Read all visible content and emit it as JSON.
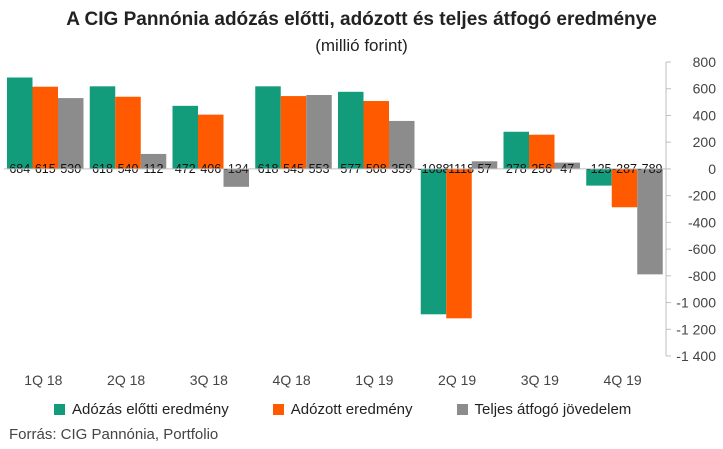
{
  "title": "A CIG Pannónia adózás előtti, adózott és teljes átfogó eredménye",
  "subtitle": "(millió forint)",
  "source": "Forrás: CIG Pannónia, Portfolio",
  "colors": {
    "series": [
      "#129c7c",
      "#ff5a00",
      "#8c8c8c"
    ],
    "axis": "#bfbfbf",
    "grid": "#d9d9d9"
  },
  "chart_data": {
    "type": "bar",
    "title": "A CIG Pannónia adózás előtti, adózott és teljes átfogó eredménye",
    "subtitle": "(millió forint)",
    "categories": [
      "1Q 18",
      "2Q 18",
      "3Q 18",
      "4Q 18",
      "1Q 19",
      "2Q 19",
      "3Q 19",
      "4Q 19"
    ],
    "series": [
      {
        "name": "Adózás előtti eredmény",
        "values": [
          684,
          618,
          472,
          618,
          577,
          -1088,
          278,
          -125
        ],
        "labels": [
          "684",
          "618",
          "472",
          "618",
          "577",
          "-1088",
          "278",
          "-125"
        ]
      },
      {
        "name": "Adózott eredmény",
        "values": [
          615,
          540,
          406,
          545,
          508,
          -1118,
          256,
          -287
        ],
        "labels": [
          "615",
          "540",
          "406",
          "545",
          "508",
          "-1118",
          "256",
          "-287"
        ]
      },
      {
        "name": "Teljes átfogó jövedelem",
        "values": [
          530,
          112,
          -134,
          553,
          359,
          57,
          47,
          -789
        ],
        "labels": [
          "530",
          "112",
          "-134",
          "553",
          "359",
          "57",
          "47",
          "-789"
        ]
      }
    ],
    "y_ticks": [
      800,
      600,
      400,
      200,
      0,
      -200,
      -400,
      -600,
      -800,
      -1000,
      -1200,
      -1400
    ],
    "y_tick_labels": [
      "800",
      "600",
      "400",
      "200",
      "0",
      "-200",
      "-400",
      "-600",
      "-800",
      "-1 000",
      "-1 200",
      "-1 400"
    ],
    "ylim": [
      -1400,
      800
    ],
    "y_axis_side": "right",
    "grid": false,
    "legend_position": "bottom"
  }
}
